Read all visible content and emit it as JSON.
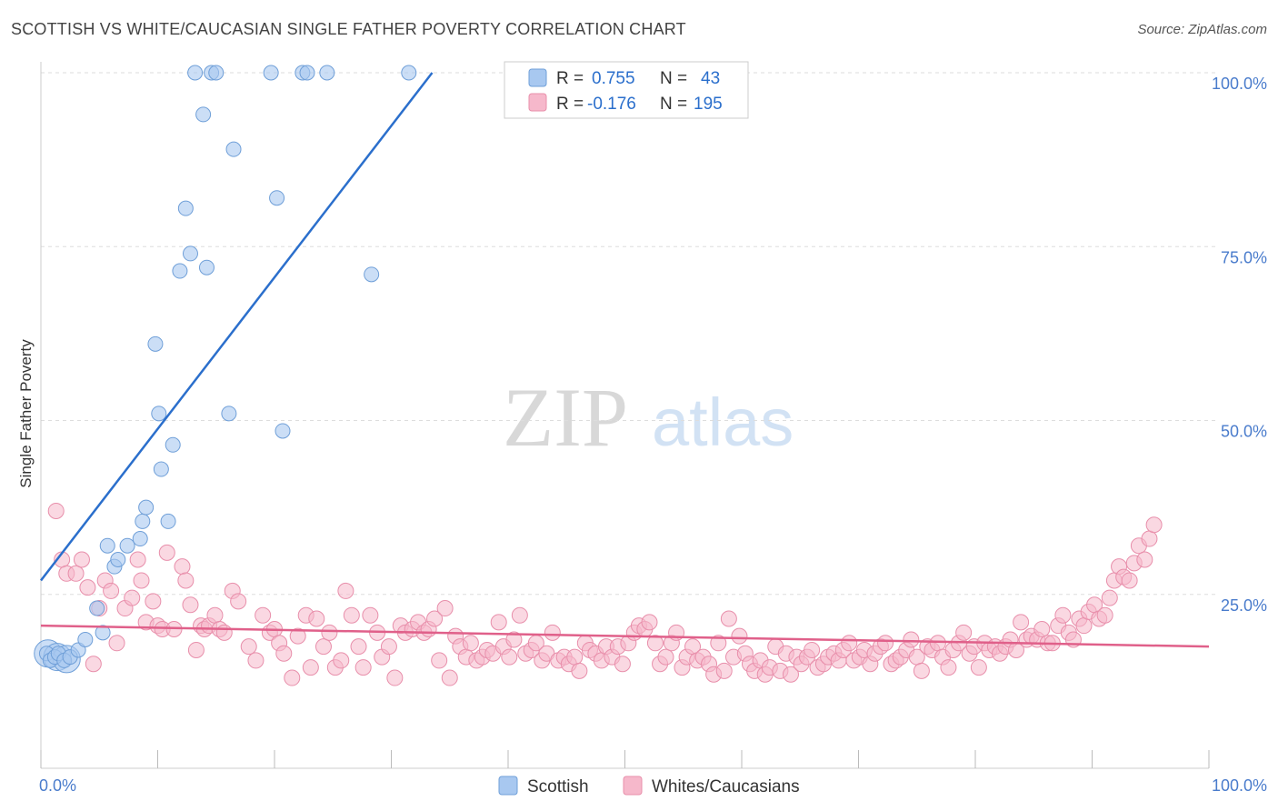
{
  "title": "SCOTTISH VS WHITE/CAUCASIAN SINGLE FATHER POVERTY CORRELATION CHART",
  "source": "Source: ZipAtlas.com",
  "watermark": {
    "zip": "ZIP",
    "atlas": "atlas"
  },
  "colors": {
    "blue_fill": "#a8c8f0",
    "blue_stroke": "#6f9fd8",
    "blue_line": "#2b6fcc",
    "pink_fill": "#f6b8cb",
    "pink_stroke": "#e88fab",
    "pink_line": "#e0608a",
    "tick_label": "#4a7ccc",
    "grid": "#dddddd"
  },
  "legend_top": {
    "rows": [
      {
        "r_label": "R =",
        "r_value": "0.755",
        "n_label": "N =",
        "n_value": "43"
      },
      {
        "r_label": "R =",
        "r_value": "-0.176",
        "n_label": "N =",
        "n_value": "195"
      }
    ]
  },
  "legend_bottom": [
    "Scottish",
    "Whites/Caucasians"
  ],
  "chart_data": {
    "type": "scatter",
    "title": "SCOTTISH VS WHITE/CAUCASIAN SINGLE FATHER POVERTY CORRELATION CHART",
    "xlabel": "",
    "ylabel": "Single Father Poverty",
    "xlim": [
      0,
      100
    ],
    "ylim": [
      0,
      100
    ],
    "x_tick_labels": [
      "0.0%",
      "100.0%"
    ],
    "y_tick_labels": [
      {
        "value": 25,
        "label": "25.0%"
      },
      {
        "value": 50,
        "label": "50.0%"
      },
      {
        "value": 75,
        "label": "75.0%"
      },
      {
        "value": 100,
        "label": "100.0%"
      }
    ],
    "grid": true,
    "legend_position": "top-center",
    "series": [
      {
        "name": "Scottish",
        "r": 0.755,
        "n": 43,
        "trend": {
          "x1": 0,
          "y1": 27,
          "x2": 33.5,
          "y2": 100
        },
        "points": [
          [
            0.5,
            16.5
          ],
          [
            0.8,
            15.5
          ],
          [
            1.2,
            16
          ],
          [
            1.5,
            16.5
          ],
          [
            2,
            15.5
          ],
          [
            2.5,
            16
          ],
          [
            3.2,
            17
          ],
          [
            3.8,
            18.5
          ],
          [
            4.8,
            23
          ],
          [
            5.3,
            19.5
          ],
          [
            5.7,
            32
          ],
          [
            6.3,
            29
          ],
          [
            6.6,
            30
          ],
          [
            7.4,
            32
          ],
          [
            8.5,
            33
          ],
          [
            8.7,
            35.5
          ],
          [
            9,
            37.5
          ],
          [
            9.8,
            61
          ],
          [
            10.1,
            51
          ],
          [
            10.3,
            43
          ],
          [
            10.9,
            35.5
          ],
          [
            11.3,
            46.5
          ],
          [
            11.9,
            71.5
          ],
          [
            12.4,
            80.5
          ],
          [
            12.8,
            74
          ],
          [
            13.2,
            100
          ],
          [
            13.9,
            94
          ],
          [
            14.2,
            72
          ],
          [
            14.6,
            100
          ],
          [
            15,
            100
          ],
          [
            16.1,
            51
          ],
          [
            16.5,
            89
          ],
          [
            19.7,
            100
          ],
          [
            20.2,
            82
          ],
          [
            20.7,
            48.5
          ],
          [
            22.4,
            100
          ],
          [
            22.8,
            100
          ],
          [
            24.5,
            100
          ],
          [
            28.3,
            71
          ],
          [
            31.5,
            100
          ]
        ],
        "big_points": [
          [
            0.6,
            16.5
          ],
          [
            1.4,
            16.0
          ],
          [
            2.2,
            15.7
          ]
        ]
      },
      {
        "name": "Whites/Caucasians",
        "r": -0.176,
        "n": 195,
        "trend": {
          "x1": 0,
          "y1": 20.5,
          "x2": 100,
          "y2": 17.5
        },
        "points": [
          [
            1.3,
            37
          ],
          [
            1.8,
            30
          ],
          [
            2.2,
            28
          ],
          [
            3,
            28
          ],
          [
            3.5,
            30
          ],
          [
            4,
            26
          ],
          [
            4.5,
            15
          ],
          [
            5,
            23
          ],
          [
            5.5,
            27
          ],
          [
            6,
            25.5
          ],
          [
            6.5,
            18
          ],
          [
            7.2,
            23
          ],
          [
            7.8,
            24.5
          ],
          [
            8.3,
            30
          ],
          [
            8.6,
            27
          ],
          [
            9,
            21
          ],
          [
            9.6,
            24
          ],
          [
            10,
            20.5
          ],
          [
            10.4,
            20
          ],
          [
            10.8,
            31
          ],
          [
            11.4,
            20
          ],
          [
            12.1,
            29
          ],
          [
            12.4,
            27
          ],
          [
            12.8,
            23.5
          ],
          [
            13.3,
            17
          ],
          [
            13.7,
            20.5
          ],
          [
            14,
            20
          ],
          [
            14.4,
            20.5
          ],
          [
            14.9,
            22
          ],
          [
            15.3,
            20
          ],
          [
            15.7,
            19.5
          ],
          [
            16.4,
            25.5
          ],
          [
            16.9,
            24
          ],
          [
            17.8,
            17.5
          ],
          [
            18.4,
            15.5
          ],
          [
            19,
            22
          ],
          [
            19.6,
            19.5
          ],
          [
            20,
            20
          ],
          [
            20.4,
            18
          ],
          [
            20.8,
            16.5
          ],
          [
            21.5,
            13
          ],
          [
            22,
            19
          ],
          [
            22.7,
            22
          ],
          [
            23.1,
            14.5
          ],
          [
            23.6,
            21.5
          ],
          [
            24.2,
            17.5
          ],
          [
            24.7,
            19.5
          ],
          [
            25.2,
            14.5
          ],
          [
            25.7,
            15.5
          ],
          [
            26.1,
            25.5
          ],
          [
            26.6,
            22
          ],
          [
            27.2,
            17.5
          ],
          [
            27.6,
            14.5
          ],
          [
            28.2,
            22
          ],
          [
            28.8,
            19.5
          ],
          [
            29.2,
            16
          ],
          [
            29.8,
            17.5
          ],
          [
            30.3,
            13
          ],
          [
            30.8,
            20.5
          ],
          [
            31.2,
            19.5
          ],
          [
            31.8,
            20
          ],
          [
            32.3,
            21
          ],
          [
            32.8,
            19.5
          ],
          [
            33.2,
            20
          ],
          [
            33.7,
            21.5
          ],
          [
            34.1,
            15.5
          ],
          [
            34.6,
            23
          ],
          [
            35,
            13
          ],
          [
            35.5,
            19
          ],
          [
            35.9,
            17.5
          ],
          [
            36.4,
            16
          ],
          [
            36.8,
            18
          ],
          [
            37.3,
            15.5
          ],
          [
            37.8,
            16
          ],
          [
            38.2,
            17
          ],
          [
            38.7,
            16.5
          ],
          [
            39.2,
            21
          ],
          [
            39.6,
            17.5
          ],
          [
            40.1,
            16
          ],
          [
            40.5,
            18.5
          ],
          [
            41,
            22
          ],
          [
            41.5,
            16.5
          ],
          [
            42,
            17
          ],
          [
            42.4,
            18
          ],
          [
            42.9,
            15.5
          ],
          [
            43.3,
            16.5
          ],
          [
            43.8,
            19.5
          ],
          [
            44.3,
            15.5
          ],
          [
            44.8,
            16
          ],
          [
            45.2,
            15
          ],
          [
            45.7,
            16
          ],
          [
            46.1,
            14
          ],
          [
            46.6,
            18
          ],
          [
            47,
            17
          ],
          [
            47.5,
            16.5
          ],
          [
            48,
            15.5
          ],
          [
            48.4,
            17.5
          ],
          [
            48.9,
            16
          ],
          [
            49.4,
            17.5
          ],
          [
            49.8,
            15
          ],
          [
            50.3,
            18
          ],
          [
            50.8,
            19.5
          ],
          [
            51.2,
            20.5
          ],
          [
            51.7,
            20
          ],
          [
            52.1,
            21
          ],
          [
            52.6,
            18
          ],
          [
            53,
            15
          ],
          [
            53.5,
            16
          ],
          [
            54,
            18
          ],
          [
            54.4,
            19.5
          ],
          [
            54.9,
            14.5
          ],
          [
            55.3,
            16
          ],
          [
            55.8,
            17.5
          ],
          [
            56.2,
            15.5
          ],
          [
            56.7,
            16
          ],
          [
            57.2,
            15
          ],
          [
            57.6,
            13.5
          ],
          [
            58,
            18
          ],
          [
            58.5,
            14
          ],
          [
            58.9,
            21.5
          ],
          [
            59.3,
            16
          ],
          [
            59.8,
            19
          ],
          [
            60.3,
            16.5
          ],
          [
            60.7,
            15
          ],
          [
            61.1,
            14
          ],
          [
            61.6,
            15.5
          ],
          [
            62,
            13.5
          ],
          [
            62.4,
            14.5
          ],
          [
            62.9,
            17.5
          ],
          [
            63.3,
            14
          ],
          [
            63.8,
            16.5
          ],
          [
            64.2,
            13.5
          ],
          [
            64.7,
            16
          ],
          [
            65.1,
            15
          ],
          [
            65.6,
            16
          ],
          [
            66,
            17
          ],
          [
            66.5,
            14.5
          ],
          [
            67,
            15
          ],
          [
            67.4,
            16
          ],
          [
            67.9,
            16.5
          ],
          [
            68.3,
            15.5
          ],
          [
            68.7,
            17
          ],
          [
            69.2,
            18
          ],
          [
            69.6,
            15.5
          ],
          [
            70.1,
            16
          ],
          [
            70.5,
            17
          ],
          [
            71,
            15
          ],
          [
            71.4,
            16.5
          ],
          [
            71.9,
            17.5
          ],
          [
            72.3,
            18
          ],
          [
            72.8,
            15
          ],
          [
            73.2,
            15.5
          ],
          [
            73.6,
            16
          ],
          [
            74.1,
            17
          ],
          [
            74.5,
            18.5
          ],
          [
            75,
            16
          ],
          [
            75.4,
            14
          ],
          [
            75.9,
            17.5
          ],
          [
            76.3,
            17
          ],
          [
            76.8,
            18
          ],
          [
            77.2,
            16
          ],
          [
            77.7,
            14.5
          ],
          [
            78.1,
            17
          ],
          [
            78.6,
            18
          ],
          [
            79,
            19.5
          ],
          [
            79.5,
            16.5
          ],
          [
            79.9,
            17.5
          ],
          [
            80.3,
            14.5
          ],
          [
            80.8,
            18
          ],
          [
            81.2,
            17
          ],
          [
            81.7,
            17.5
          ],
          [
            82.1,
            16.5
          ],
          [
            82.6,
            17.5
          ],
          [
            83,
            18.5
          ],
          [
            83.5,
            17
          ],
          [
            83.9,
            21
          ],
          [
            84.4,
            18.5
          ],
          [
            84.8,
            19
          ],
          [
            85.3,
            18.5
          ],
          [
            85.7,
            20
          ],
          [
            86.2,
            18
          ],
          [
            86.6,
            18
          ],
          [
            87.1,
            20.5
          ],
          [
            87.5,
            22
          ],
          [
            88,
            19.5
          ],
          [
            88.4,
            18.5
          ],
          [
            88.9,
            21.5
          ],
          [
            89.3,
            20.5
          ],
          [
            89.7,
            22.5
          ],
          [
            90.2,
            23.5
          ],
          [
            90.6,
            21.5
          ],
          [
            91.1,
            22
          ],
          [
            91.5,
            24.5
          ],
          [
            91.9,
            27
          ],
          [
            92.3,
            29
          ],
          [
            92.7,
            27.5
          ],
          [
            93.2,
            27
          ],
          [
            93.6,
            29.5
          ],
          [
            94,
            32
          ],
          [
            94.5,
            30
          ],
          [
            94.9,
            33
          ],
          [
            95.3,
            35
          ]
        ]
      }
    ]
  }
}
